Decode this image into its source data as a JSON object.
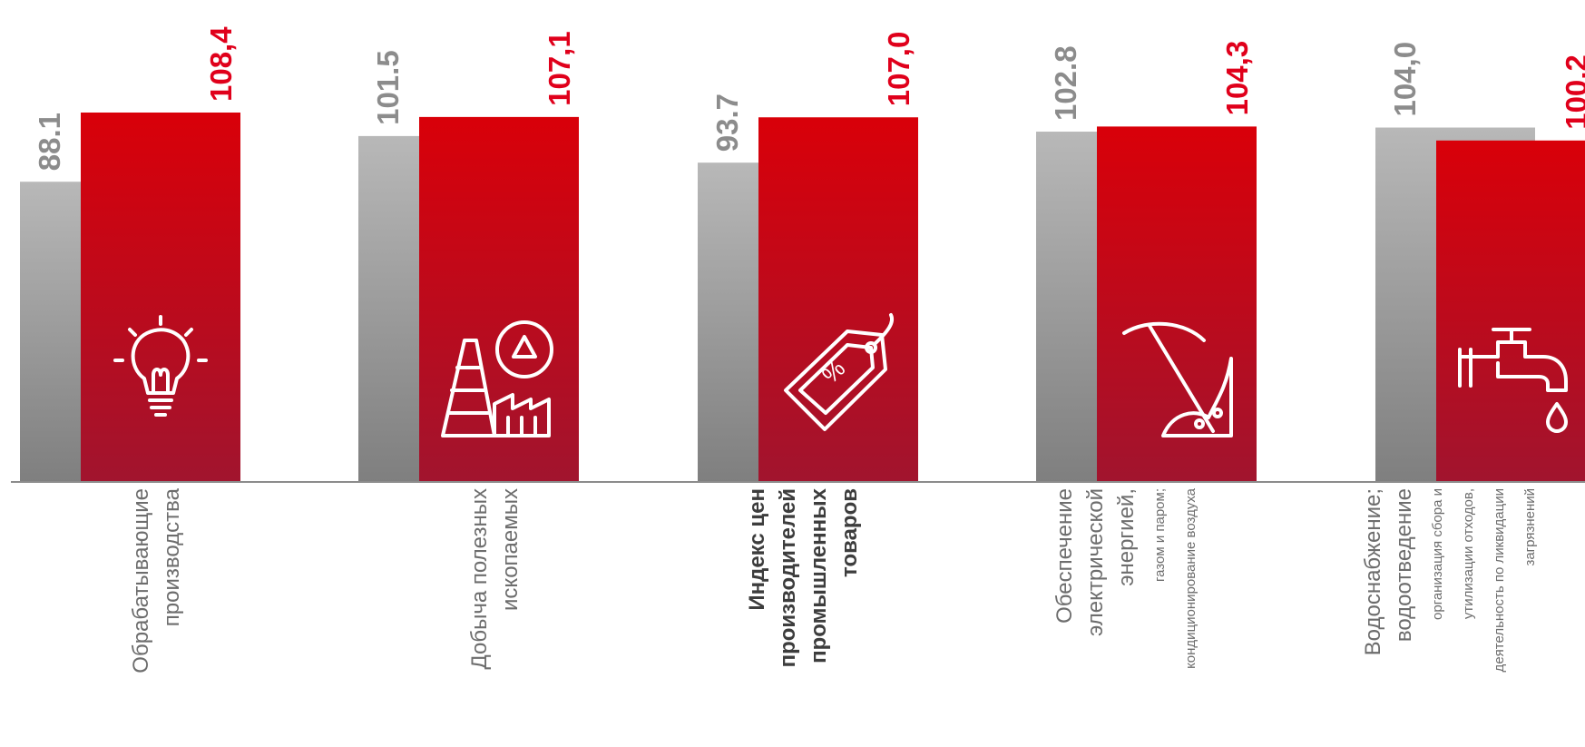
{
  "chart_data": {
    "type": "bar",
    "categories": [
      {
        "lines": [
          [
            "Обрабатывающие",
            "big"
          ],
          [
            "производства",
            "big"
          ]
        ],
        "bold": false,
        "icon": "lightbulb-icon"
      },
      {
        "lines": [
          [
            "Добыча полезных",
            "big"
          ],
          [
            "ископаемых",
            "big"
          ]
        ],
        "bold": false,
        "icon": "factory-recycle-icon"
      },
      {
        "lines": [
          [
            "Индекс цен",
            "big"
          ],
          [
            "производителей",
            "big"
          ],
          [
            "промышленных",
            "big"
          ],
          [
            "товаров",
            "big"
          ]
        ],
        "bold": true,
        "icon": "price-tag-icon"
      },
      {
        "lines": [
          [
            "Обеспечение",
            "big"
          ],
          [
            "электрической",
            "big"
          ],
          [
            "энергией,",
            "big"
          ],
          [
            "газом и паром;",
            "small"
          ],
          [
            "кондиционирование воздуха",
            "small"
          ]
        ],
        "bold": false,
        "icon": "pickaxe-icon"
      },
      {
        "lines": [
          [
            "Водоснабжение;",
            "big"
          ],
          [
            "водоотведение",
            "big"
          ],
          [
            "организация сбора и",
            "small"
          ],
          [
            "утилизации отходов,",
            "small"
          ],
          [
            "деятельность по ликвидации",
            "small"
          ],
          [
            "загрязнений",
            "small"
          ]
        ],
        "bold": false,
        "icon": "water-tap-icon"
      }
    ],
    "series": [
      {
        "values": [
          88.1,
          101.5,
          93.7,
          102.8,
          104.0
        ],
        "labels": [
          "88.1",
          "101.5",
          "93.7",
          "102.8",
          "104,0"
        ],
        "color": "#b3b3b3"
      },
      {
        "values": [
          108.4,
          107.1,
          107.0,
          104.3,
          100.2
        ],
        "labels": [
          "108,4",
          "107,1",
          "107,0",
          "104,3",
          "100,2"
        ],
        "color": "#e0001b"
      }
    ],
    "colors": {
      "prev": "#8c8c8c",
      "cur": "#e0001b",
      "axis": "#8c8c8c"
    },
    "axis": {
      "grid": false,
      "legend": "none",
      "value_labels": "vertical",
      "category_labels": "vertical"
    }
  }
}
